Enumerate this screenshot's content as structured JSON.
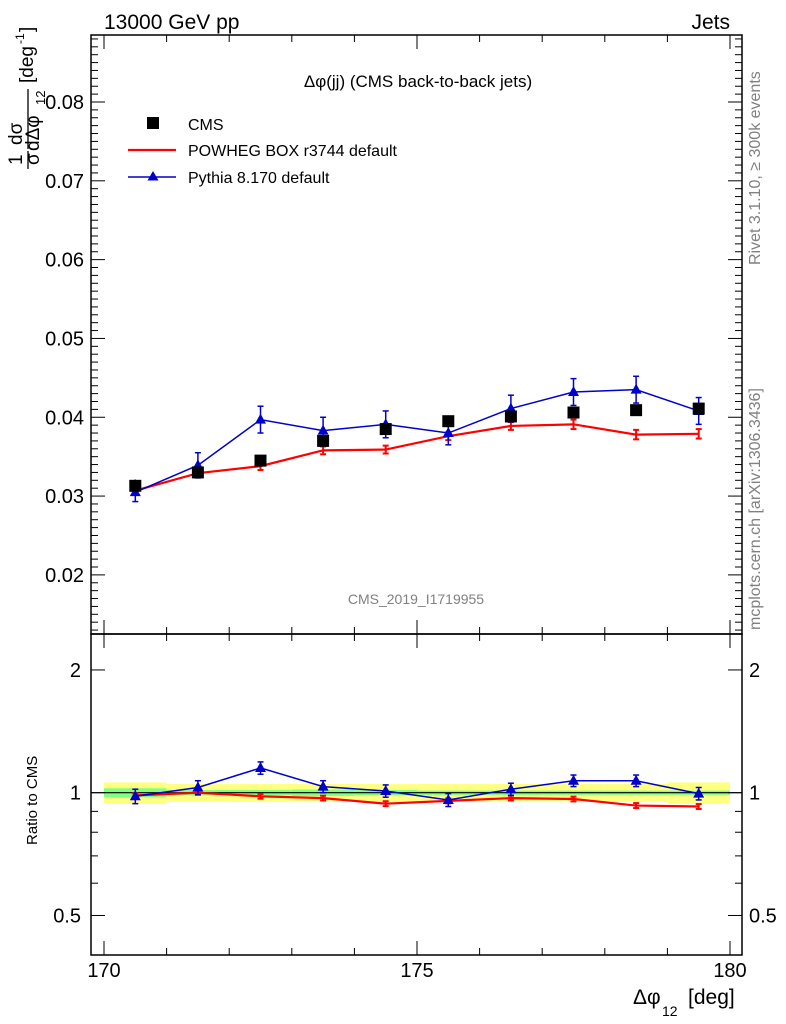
{
  "header": {
    "left": "13000 GeV pp",
    "right": "Jets"
  },
  "side": {
    "rivet": "Rivet 3.1.10, ≥ 300k events",
    "mcplots": "mcplots.cern.ch [arXiv:1306.3436]"
  },
  "colors": {
    "cms": "#000000",
    "powheg": "#ff0000",
    "pythia": "#0000cc",
    "band_outer": "#ffff80",
    "band_inner": "#80ff80"
  },
  "chart_data": [
    {
      "type": "scatter",
      "panel": "main",
      "title": "Δφ(jj) (CMS back-to-back jets)",
      "watermark": "CMS_2019_I1719955",
      "ylabel_parts": {
        "num": "1",
        "den_sigma": "σ",
        "dsigma": "dσ",
        "dden": "dΔφ",
        "sub": "12",
        "unit": "[deg",
        "unit_exp": "-1",
        "unit_close": "]"
      },
      "xlim": [
        170,
        180
      ],
      "ylim": [
        0.0125,
        0.0885
      ],
      "yticks": [
        "0.02",
        "0.03",
        "0.04",
        "0.05",
        "0.06",
        "0.07",
        "0.08"
      ],
      "ytick_values": [
        0.02,
        0.03,
        0.04,
        0.05,
        0.06,
        0.07,
        0.08
      ],
      "legend_position": "top-left",
      "x": [
        170.5,
        171.5,
        172.5,
        173.5,
        174.5,
        175.5,
        176.5,
        177.5,
        178.5,
        179.5
      ],
      "series": [
        {
          "name": "CMS",
          "style": "square",
          "values": [
            0.0313,
            0.033,
            0.0345,
            0.037,
            0.0385,
            0.0395,
            0.0401,
            0.0406,
            0.0409,
            0.0411
          ],
          "errors": [
            0.0008,
            0.0004,
            0.0004,
            0.0006,
            0.0005,
            0.0004,
            0.0004,
            0.0004,
            0.0004,
            0.0004
          ]
        },
        {
          "name": "POWHEG BOX r3744 default",
          "style": "line",
          "values": [
            0.0307,
            0.0329,
            0.0338,
            0.0358,
            0.0359,
            0.0376,
            0.0389,
            0.0391,
            0.0378,
            0.0379
          ],
          "errors": [
            0.0004,
            0.0004,
            0.0005,
            0.0005,
            0.0005,
            0.0005,
            0.0005,
            0.0006,
            0.0006,
            0.0006
          ]
        },
        {
          "name": "Pythia 8.170 default",
          "style": "triangle",
          "values": [
            0.0305,
            0.0339,
            0.0397,
            0.0383,
            0.0391,
            0.038,
            0.0411,
            0.0432,
            0.0435,
            0.0408
          ],
          "errors": [
            0.0012,
            0.0016,
            0.0017,
            0.0017,
            0.0017,
            0.0015,
            0.0017,
            0.0017,
            0.0017,
            0.0017
          ]
        }
      ]
    },
    {
      "type": "scatter",
      "panel": "ratio",
      "ylabel": "Ratio to CMS",
      "xlabel_parts": {
        "main": "Δφ",
        "sub": "12",
        "unit": "[deg]"
      },
      "xlim": [
        170,
        180
      ],
      "ylim": [
        0.4,
        2.45
      ],
      "log_y": true,
      "yticks": [
        "0.5",
        "1",
        "2"
      ],
      "ytick_values": [
        0.5,
        1,
        2
      ],
      "xticks": [
        "170",
        "175",
        "180"
      ],
      "xtick_values": [
        170,
        175,
        180
      ],
      "x": [
        170.5,
        171.5,
        172.5,
        173.5,
        174.5,
        175.5,
        176.5,
        177.5,
        178.5,
        179.5
      ],
      "band_outer": [
        0.06,
        0.05,
        0.05,
        0.05,
        0.05,
        0.05,
        0.05,
        0.05,
        0.05,
        0.06
      ],
      "band_inner": [
        0.025,
        0.015,
        0.015,
        0.018,
        0.015,
        0.012,
        0.012,
        0.012,
        0.012,
        0.012
      ],
      "series": [
        {
          "name": "POWHEG BOX r3744 default",
          "style": "line",
          "values": [
            0.985,
            1.0,
            0.98,
            0.97,
            0.94,
            0.955,
            0.97,
            0.965,
            0.93,
            0.925
          ],
          "errors": [
            0.012,
            0.012,
            0.013,
            0.013,
            0.013,
            0.013,
            0.013,
            0.013,
            0.013,
            0.013
          ]
        },
        {
          "name": "Pythia 8.170 default",
          "style": "triangle",
          "values": [
            0.98,
            1.03,
            1.15,
            1.035,
            1.01,
            0.96,
            1.02,
            1.07,
            1.07,
            0.995
          ],
          "errors": [
            0.04,
            0.04,
            0.04,
            0.035,
            0.035,
            0.035,
            0.035,
            0.035,
            0.035,
            0.035
          ]
        }
      ]
    }
  ]
}
